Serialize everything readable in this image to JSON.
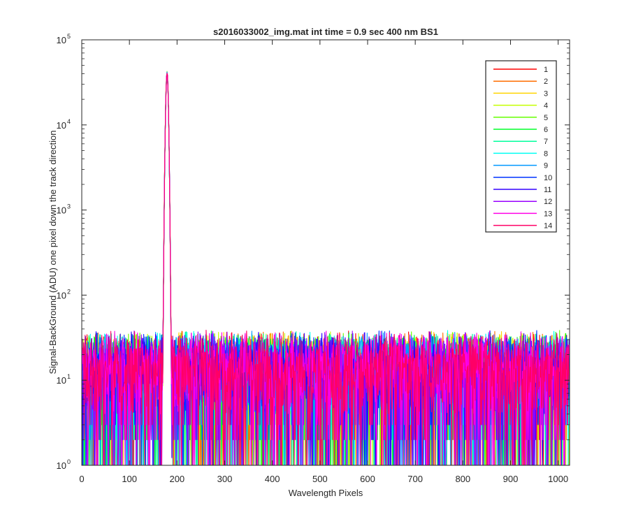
{
  "chart_data": {
    "type": "line",
    "title": "s2016033002_img.mat int time = 0.9 sec  400 nm BS1",
    "xlabel": "Wavelength Pixels",
    "ylabel": "Signal-BackGround (ADU) one pixel down the track direction",
    "xlim": [
      0,
      1024
    ],
    "ylim": [
      1,
      100000
    ],
    "yscale": "log",
    "grid": false,
    "legend_position": "top-right",
    "x_ticks": [
      "0",
      "100",
      "200",
      "300",
      "400",
      "500",
      "600",
      "700",
      "800",
      "900",
      "1000"
    ],
    "y_ticks": [
      {
        "base": "10",
        "exp": "0"
      },
      {
        "base": "10",
        "exp": "1"
      },
      {
        "base": "10",
        "exp": "2"
      },
      {
        "base": "10",
        "exp": "3"
      },
      {
        "base": "10",
        "exp": "4"
      },
      {
        "base": "10",
        "exp": "5"
      }
    ],
    "x": {
      "start": 0,
      "end": 1023,
      "step": 1
    },
    "peak": {
      "center": 179,
      "max_value": 40000,
      "sigma": 2.2
    },
    "noise": {
      "typical_range": [
        1,
        45
      ],
      "median": 12
    },
    "series": [
      {
        "name": "1",
        "color": "#ff0000"
      },
      {
        "name": "2",
        "color": "#ff6d00"
      },
      {
        "name": "3",
        "color": "#ffd500"
      },
      {
        "name": "4",
        "color": "#c4ff00"
      },
      {
        "name": "5",
        "color": "#66ff00"
      },
      {
        "name": "6",
        "color": "#00ff2a"
      },
      {
        "name": "7",
        "color": "#00ff9c"
      },
      {
        "name": "8",
        "color": "#00fff2"
      },
      {
        "name": "9",
        "color": "#0099ff"
      },
      {
        "name": "10",
        "color": "#0033ff"
      },
      {
        "name": "11",
        "color": "#3300ff"
      },
      {
        "name": "12",
        "color": "#9900ff"
      },
      {
        "name": "13",
        "color": "#ff00e6"
      },
      {
        "name": "14",
        "color": "#ff0066"
      }
    ]
  }
}
